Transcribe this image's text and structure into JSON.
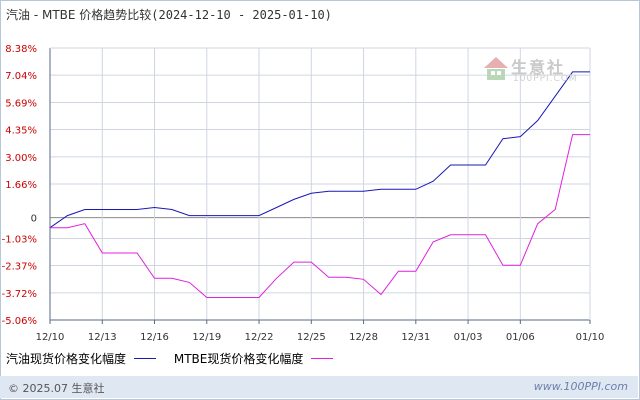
{
  "title": {
    "name": "汽油 - MTBE 价格趋势比较",
    "range": "(2024-12-10 - 2025-01-10)"
  },
  "colors": {
    "gasoline": "#1818b8",
    "mtbe": "#e020e0",
    "ytick": "#cc0000",
    "grid": "#cfd6e2",
    "axis": "#5a6a8a",
    "zero": "#8a8a8a"
  },
  "chart_data": {
    "type": "line",
    "title": "汽油 - MTBE 价格趋势比较",
    "yticks": [
      "8.38%",
      "7.04%",
      "5.69%",
      "4.35%",
      "3.00%",
      "1.66%",
      "0",
      "-1.03%",
      "-2.37%",
      "-3.72%",
      "-5.06%"
    ],
    "ytick_values": [
      8.38,
      7.04,
      5.69,
      4.35,
      3.0,
      1.66,
      0,
      -1.03,
      -2.37,
      -3.72,
      -5.06
    ],
    "ylim": [
      -5.06,
      8.38
    ],
    "x": [
      "12/10",
      "12/11",
      "12/12",
      "12/13",
      "12/14",
      "12/15",
      "12/16",
      "12/17",
      "12/18",
      "12/19",
      "12/20",
      "12/21",
      "12/22",
      "12/23",
      "12/24",
      "12/25",
      "12/26",
      "12/27",
      "12/28",
      "12/29",
      "12/30",
      "12/31",
      "01/01",
      "01/02",
      "01/03",
      "01/04",
      "01/05",
      "01/06",
      "01/07",
      "01/08",
      "01/09",
      "01/10"
    ],
    "xticks": [
      "12/10",
      "12/13",
      "12/16",
      "12/19",
      "12/22",
      "12/25",
      "12/28",
      "12/31",
      "01/03",
      "01/06",
      "01/10"
    ],
    "grid": true,
    "legend_position": "bottom-left",
    "series": [
      {
        "name": "汽油现货价格变化幅度",
        "values": [
          -0.5,
          0.1,
          0.4,
          0.4,
          0.4,
          0.4,
          0.5,
          0.4,
          0.1,
          0.1,
          0.1,
          0.1,
          0.1,
          0.5,
          0.9,
          1.2,
          1.3,
          1.3,
          1.3,
          1.4,
          1.4,
          1.4,
          1.8,
          2.6,
          2.6,
          2.6,
          3.9,
          4.0,
          4.8,
          6.0,
          7.2,
          7.2
        ]
      },
      {
        "name": "MTBE现货价格变化幅度",
        "values": [
          -0.5,
          -0.5,
          -0.3,
          -1.75,
          -1.75,
          -1.75,
          -3.0,
          -3.0,
          -3.2,
          -3.95,
          -3.95,
          -3.95,
          -3.95,
          -3.0,
          -2.2,
          -2.2,
          -2.95,
          -2.95,
          -3.05,
          -3.8,
          -2.65,
          -2.65,
          -1.2,
          -0.85,
          -0.85,
          -0.85,
          -2.35,
          -2.35,
          -0.3,
          0.4,
          4.1,
          4.1
        ]
      }
    ]
  },
  "legend": [
    {
      "label": "汽油现货价格变化幅度",
      "color": "#1818b8"
    },
    {
      "label": "MTBE现货价格变化幅度",
      "color": "#e020e0"
    }
  ],
  "watermark": {
    "text": "生意社",
    "url": "100PPI.COM"
  },
  "footer": {
    "copyright": "© 2025.07 生意社",
    "site": "www.100PPI.com"
  }
}
